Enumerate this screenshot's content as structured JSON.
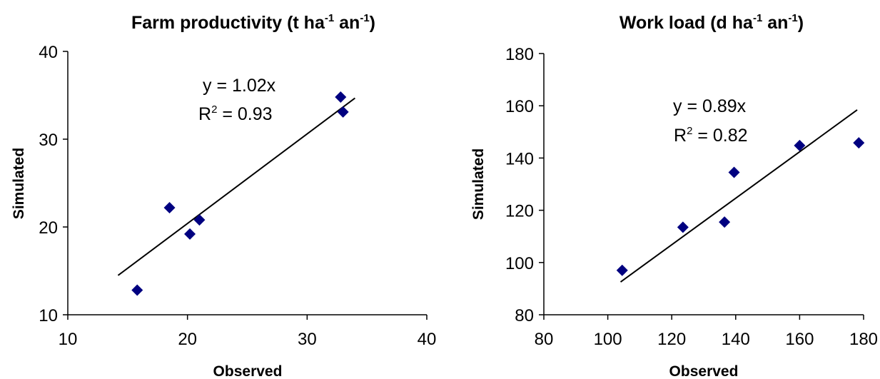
{
  "chart_data": [
    {
      "type": "scatter",
      "title": {
        "main": "Farm productivity (t ha",
        "sup1": "-1",
        "mid": " an",
        "sup2": "-1",
        "end": ")"
      },
      "xlabel": "Observed",
      "ylabel": "Simulated",
      "xlim": [
        10,
        40
      ],
      "ylim": [
        10,
        40
      ],
      "xticks": [
        "10",
        "20",
        "30",
        "40"
      ],
      "yticks": [
        "10",
        "20",
        "30",
        "40"
      ],
      "points": [
        [
          15.8,
          12.8
        ],
        [
          18.5,
          22.2
        ],
        [
          20.2,
          19.2
        ],
        [
          21.0,
          20.8
        ],
        [
          32.8,
          34.8
        ],
        [
          33.0,
          33.1
        ]
      ],
      "trendline": {
        "slope": 1.02,
        "x_range": [
          14.2,
          34.0
        ]
      },
      "equation": "y = 1.02x",
      "r2": {
        "label": "R",
        "sup": "2",
        "value": " = 0.93"
      },
      "marker_color": "#000080",
      "line_color": "#000000"
    },
    {
      "type": "scatter",
      "title": {
        "main": "Work load (d ha",
        "sup1": "-1",
        "mid": " an",
        "sup2": "-1",
        "end": ")"
      },
      "xlabel": "Observed",
      "ylabel": "Simulated",
      "xlim": [
        80,
        180
      ],
      "ylim": [
        80,
        180
      ],
      "xticks": [
        "80",
        "100",
        "120",
        "140",
        "160",
        "180"
      ],
      "yticks": [
        "80",
        "100",
        "120",
        "140",
        "160",
        "180"
      ],
      "points": [
        [
          104.5,
          97.0
        ],
        [
          123.5,
          113.5
        ],
        [
          136.5,
          115.5
        ],
        [
          139.5,
          134.5
        ],
        [
          160.0,
          144.8
        ],
        [
          178.5,
          145.8
        ]
      ],
      "trendline": {
        "slope": 0.89,
        "x_range": [
          104.0,
          178.0
        ]
      },
      "equation": "y = 0.89x",
      "r2": {
        "label": "R",
        "sup": "2",
        "value": " = 0.82"
      },
      "marker_color": "#000080",
      "line_color": "#000000"
    }
  ]
}
